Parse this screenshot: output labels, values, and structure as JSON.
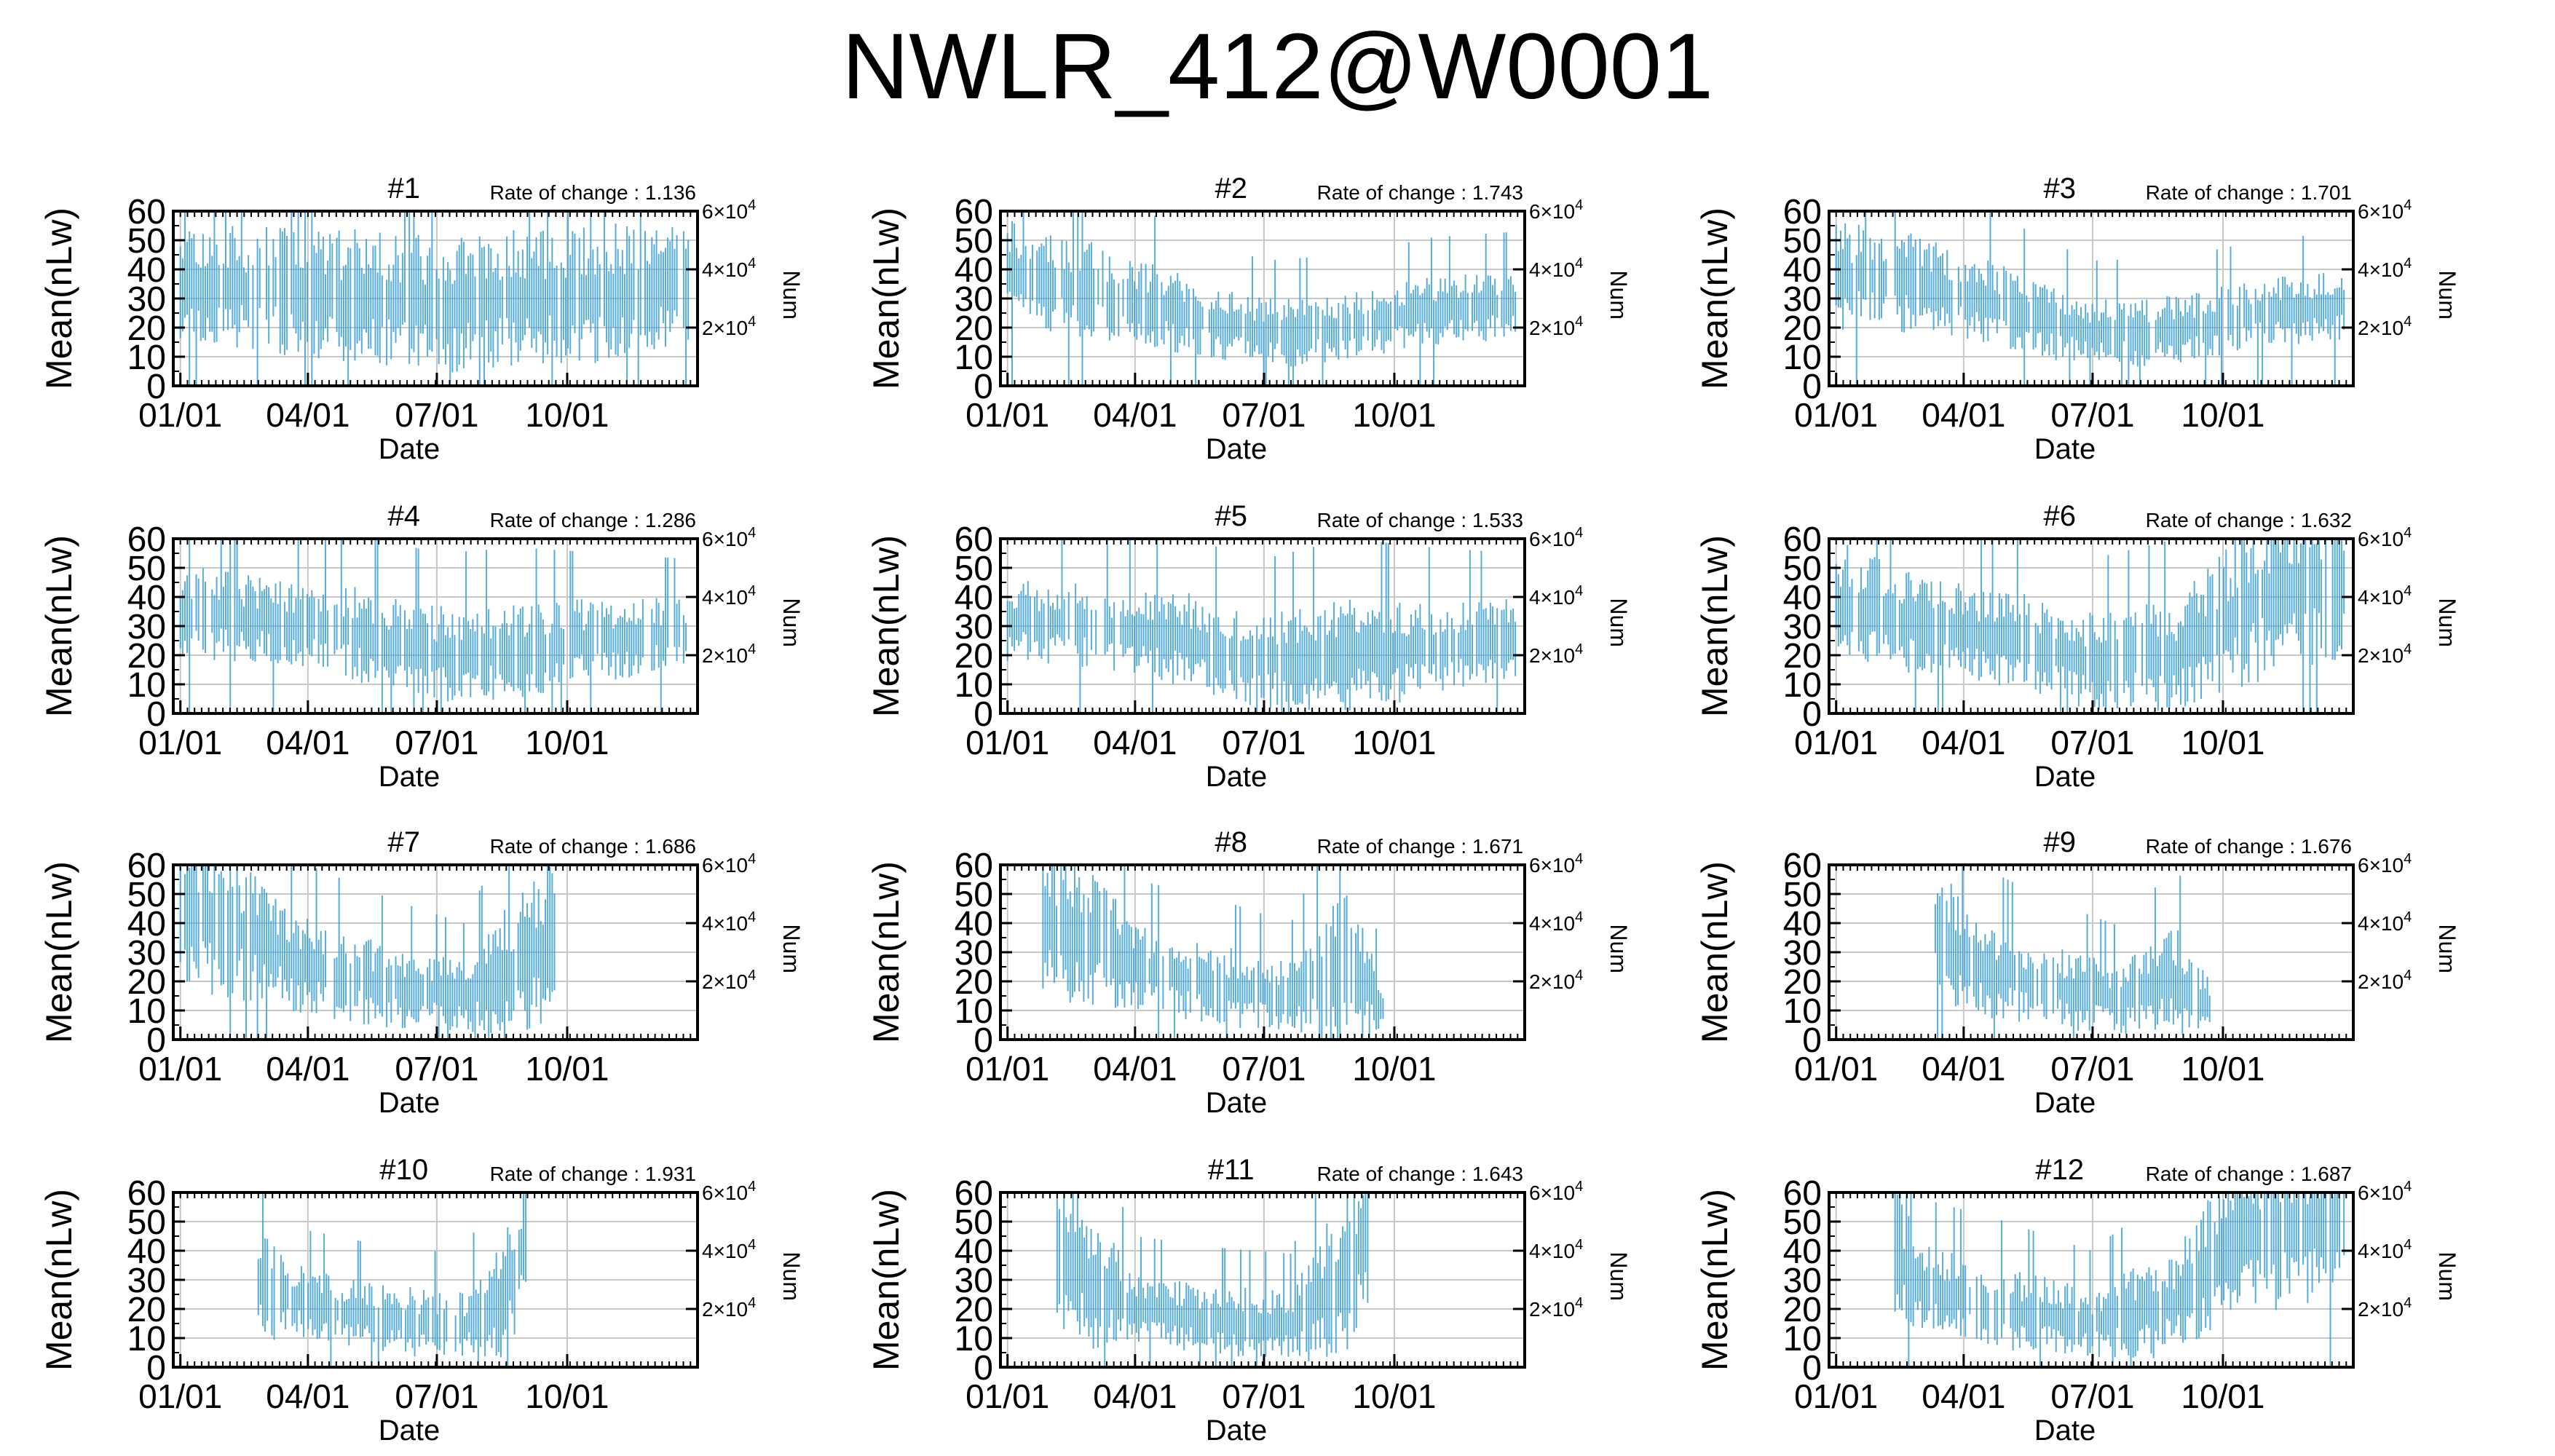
{
  "title": "NWLR_412@W0001",
  "common": {
    "xlabel": "Date",
    "ylabel": "Mean(nLw)",
    "y2label": "Num",
    "rate_prefix": "Rate of change : ",
    "x_tick_labels": [
      "01/01",
      "04/01",
      "07/01",
      "10/01"
    ],
    "x_tick_days": [
      0,
      90,
      181,
      273
    ],
    "x_range_days": [
      -5,
      365
    ],
    "y_ticks": [
      0,
      10,
      20,
      30,
      40,
      50,
      60
    ],
    "ylim": [
      0,
      60
    ],
    "y2_ticks": [
      {
        "value": 20000,
        "base": "2×10",
        "exp": "4"
      },
      {
        "value": 40000,
        "base": "4×10",
        "exp": "4"
      },
      {
        "value": 60000,
        "base": "6×10",
        "exp": "4"
      }
    ],
    "y2lim": [
      0,
      60000
    ],
    "series_color": "#3a9fd4",
    "grid": true
  },
  "chart_data": [
    {
      "type": "line",
      "title": "#1",
      "rate": "1.136",
      "start_day": 0,
      "end_day": 360,
      "profile": [
        [
          0,
          35,
          18
        ],
        [
          60,
          33,
          18
        ],
        [
          120,
          30,
          20
        ],
        [
          180,
          28,
          20
        ],
        [
          240,
          30,
          20
        ],
        [
          300,
          32,
          20
        ],
        [
          360,
          34,
          18
        ]
      ]
    },
    {
      "type": "line",
      "title": "#2",
      "rate": "1.743",
      "start_day": 0,
      "end_day": 360,
      "profile": [
        [
          0,
          38,
          16
        ],
        [
          60,
          33,
          14
        ],
        [
          120,
          25,
          12
        ],
        [
          180,
          18,
          10
        ],
        [
          240,
          20,
          10
        ],
        [
          300,
          26,
          10
        ],
        [
          360,
          28,
          10
        ]
      ]
    },
    {
      "type": "line",
      "title": "#3",
      "rate": "1.701",
      "start_day": 0,
      "end_day": 360,
      "profile": [
        [
          0,
          38,
          16
        ],
        [
          60,
          35,
          14
        ],
        [
          120,
          27,
          12
        ],
        [
          180,
          18,
          10
        ],
        [
          240,
          19,
          10
        ],
        [
          300,
          25,
          10
        ],
        [
          360,
          28,
          10
        ]
      ]
    },
    {
      "type": "line",
      "title": "#4",
      "rate": "1.286",
      "start_day": 0,
      "end_day": 360,
      "profile": [
        [
          0,
          35,
          14
        ],
        [
          60,
          32,
          12
        ],
        [
          120,
          28,
          14
        ],
        [
          180,
          20,
          14
        ],
        [
          240,
          22,
          14
        ],
        [
          300,
          25,
          12
        ],
        [
          360,
          28,
          10
        ]
      ]
    },
    {
      "type": "line",
      "title": "#5",
      "rate": "1.533",
      "start_day": 0,
      "end_day": 360,
      "profile": [
        [
          0,
          32,
          12
        ],
        [
          60,
          30,
          12
        ],
        [
          120,
          26,
          14
        ],
        [
          180,
          18,
          14
        ],
        [
          240,
          20,
          16
        ],
        [
          300,
          22,
          14
        ],
        [
          360,
          25,
          12
        ]
      ]
    },
    {
      "type": "line",
      "title": "#6",
      "rate": "1.632",
      "start_day": 0,
      "end_day": 360,
      "profile": [
        [
          0,
          38,
          18
        ],
        [
          60,
          30,
          14
        ],
        [
          120,
          26,
          14
        ],
        [
          180,
          18,
          14
        ],
        [
          240,
          20,
          16
        ],
        [
          300,
          40,
          24
        ],
        [
          360,
          45,
          22
        ]
      ]
    },
    {
      "type": "line",
      "title": "#7",
      "rate": "1.686",
      "start_day": 0,
      "end_day": 265,
      "profile": [
        [
          0,
          45,
          24
        ],
        [
          40,
          38,
          20
        ],
        [
          90,
          25,
          14
        ],
        [
          150,
          18,
          12
        ],
        [
          200,
          15,
          10
        ],
        [
          240,
          25,
          22
        ],
        [
          265,
          35,
          22
        ]
      ]
    },
    {
      "type": "line",
      "title": "#8",
      "rate": "1.671",
      "start_day": 25,
      "end_day": 265,
      "profile": [
        [
          25,
          40,
          22
        ],
        [
          60,
          35,
          20
        ],
        [
          90,
          25,
          12
        ],
        [
          150,
          18,
          12
        ],
        [
          200,
          15,
          10
        ],
        [
          240,
          25,
          24
        ],
        [
          265,
          12,
          6
        ]
      ]
    },
    {
      "type": "line",
      "title": "#9",
      "rate": "1.676",
      "start_day": 70,
      "end_day": 265,
      "profile": [
        [
          70,
          38,
          22
        ],
        [
          100,
          25,
          14
        ],
        [
          150,
          18,
          12
        ],
        [
          200,
          14,
          10
        ],
        [
          240,
          20,
          16
        ],
        [
          265,
          12,
          6
        ]
      ]
    },
    {
      "type": "line",
      "title": "#10",
      "rate": "1.931",
      "start_day": 55,
      "end_day": 245,
      "profile": [
        [
          55,
          28,
          16
        ],
        [
          90,
          22,
          10
        ],
        [
          150,
          16,
          10
        ],
        [
          200,
          14,
          10
        ],
        [
          230,
          25,
          18
        ],
        [
          245,
          45,
          20
        ]
      ]
    },
    {
      "type": "line",
      "title": "#11",
      "rate": "1.643",
      "start_day": 35,
      "end_day": 255,
      "profile": [
        [
          35,
          40,
          24
        ],
        [
          60,
          30,
          20
        ],
        [
          90,
          20,
          10
        ],
        [
          150,
          16,
          10
        ],
        [
          200,
          14,
          10
        ],
        [
          235,
          30,
          24
        ],
        [
          255,
          45,
          22
        ]
      ]
    },
    {
      "type": "line",
      "title": "#12",
      "rate": "1.687",
      "start_day": 40,
      "end_day": 360,
      "profile": [
        [
          40,
          40,
          22
        ],
        [
          60,
          28,
          12
        ],
        [
          120,
          20,
          12
        ],
        [
          180,
          15,
          10
        ],
        [
          240,
          22,
          16
        ],
        [
          280,
          45,
          22
        ],
        [
          360,
          50,
          24
        ]
      ]
    }
  ]
}
